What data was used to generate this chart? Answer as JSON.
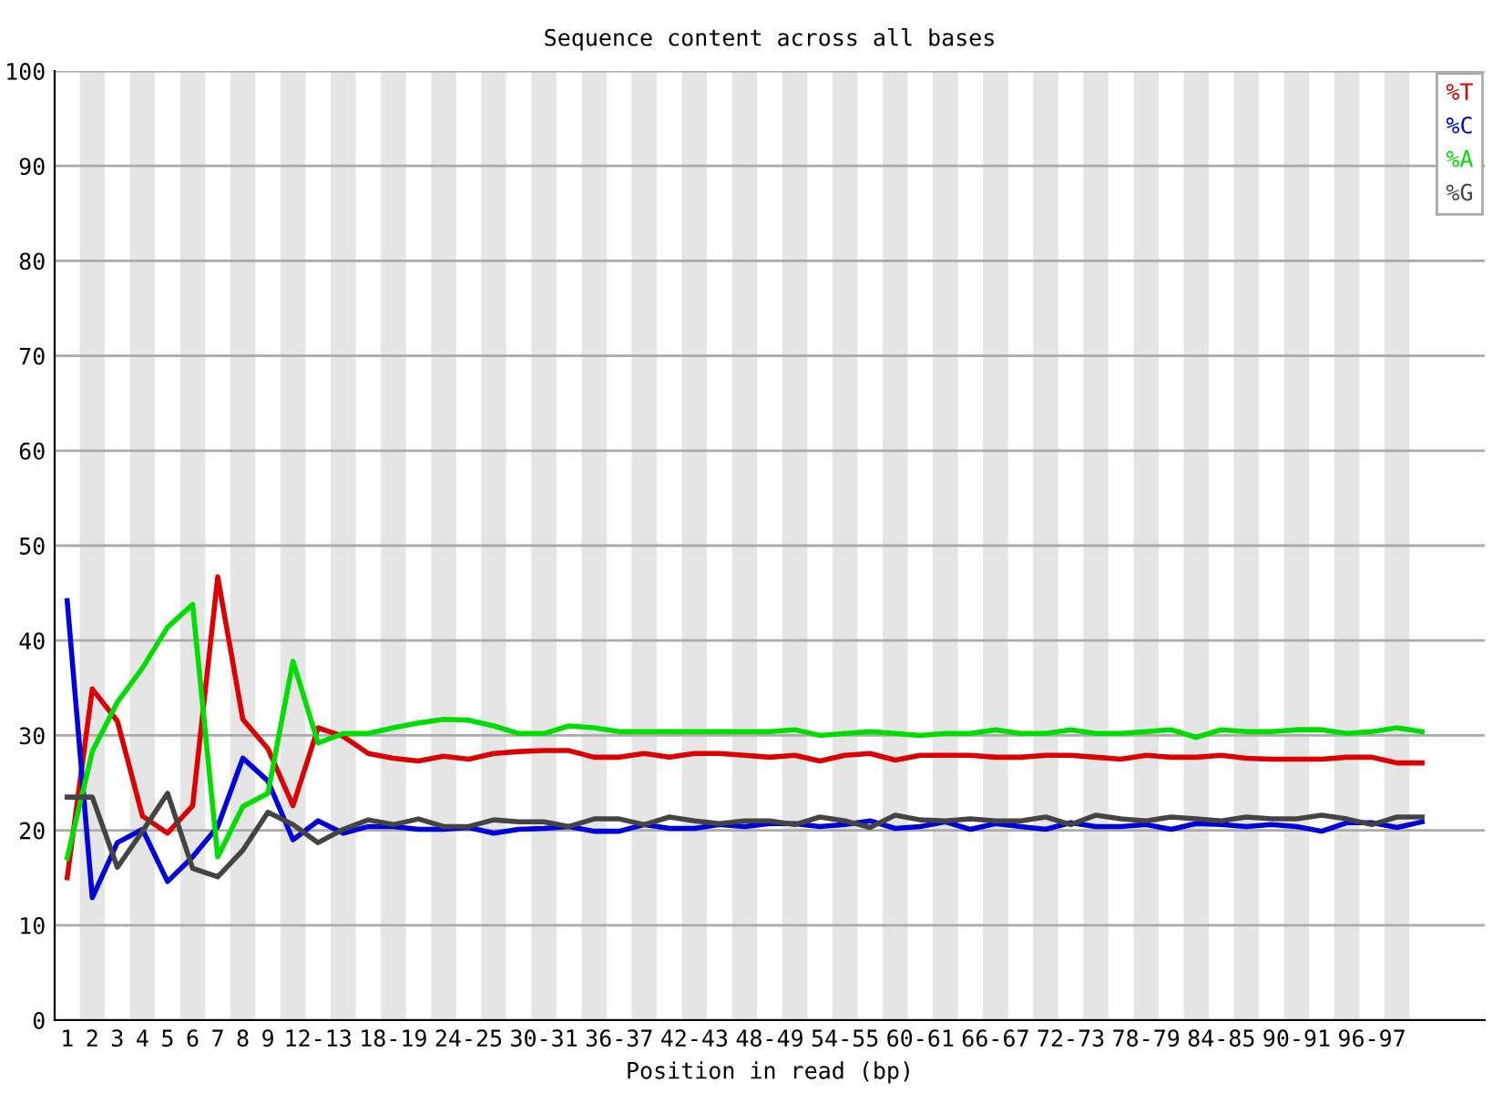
{
  "chart_data": {
    "type": "line",
    "title": "Sequence content across all bases",
    "xlabel": "Position in read (bp)",
    "categories": [
      "1",
      "2",
      "3",
      "4",
      "5",
      "6",
      "7",
      "8",
      "9",
      null,
      "12-13",
      null,
      null,
      "18-19",
      null,
      null,
      "24-25",
      null,
      null,
      "30-31",
      null,
      null,
      "36-37",
      null,
      null,
      "42-43",
      null,
      null,
      "48-49",
      null,
      null,
      "54-55",
      null,
      null,
      "60-61",
      null,
      null,
      "66-67",
      null,
      null,
      "72-73",
      null,
      null,
      "78-79",
      null,
      null,
      "84-85",
      null,
      null,
      "90-91",
      null,
      null,
      "96-97",
      null,
      null
    ],
    "series": [
      {
        "name": "%T",
        "color": "#dd0000",
        "values": [
          15.0,
          34.9,
          31.5,
          21.5,
          19.7,
          22.6,
          46.7,
          31.7,
          28.6,
          22.6,
          30.8,
          29.9,
          28.1,
          27.6,
          27.3,
          27.8,
          27.5,
          28.1,
          28.3,
          28.4,
          28.4,
          27.7,
          27.7,
          28.1,
          27.7,
          28.1,
          28.1,
          27.9,
          27.7,
          27.9,
          27.3,
          27.9,
          28.1,
          27.4,
          27.9,
          27.9,
          27.9,
          27.7,
          27.7,
          27.9,
          27.9,
          27.7,
          27.5,
          27.9,
          27.7,
          27.7,
          27.9,
          27.6,
          27.5,
          27.5,
          27.5,
          27.7,
          27.7,
          27.1,
          27.1
        ]
      },
      {
        "name": "%C",
        "color": "#0000dd",
        "values": [
          44.2,
          12.9,
          18.7,
          20.1,
          14.6,
          17.2,
          20.4,
          27.6,
          25.2,
          19.0,
          21.0,
          19.7,
          20.4,
          20.4,
          20.1,
          20.1,
          20.3,
          19.7,
          20.1,
          20.2,
          20.4,
          19.9,
          19.9,
          20.6,
          20.2,
          20.2,
          20.6,
          20.4,
          20.7,
          20.7,
          20.4,
          20.6,
          21.0,
          20.2,
          20.4,
          20.9,
          20.1,
          20.7,
          20.4,
          20.1,
          20.8,
          20.4,
          20.4,
          20.6,
          20.1,
          20.7,
          20.6,
          20.4,
          20.6,
          20.4,
          19.9,
          20.8,
          20.8,
          20.3,
          20.9
        ]
      },
      {
        "name": "%A",
        "color": "#00dd00",
        "values": [
          17.1,
          28.3,
          33.5,
          37.1,
          41.4,
          43.8,
          17.2,
          22.5,
          23.9,
          37.8,
          29.2,
          30.2,
          30.2,
          30.8,
          31.3,
          31.7,
          31.6,
          31.0,
          30.2,
          30.2,
          31.0,
          30.8,
          30.4,
          30.4,
          30.4,
          30.4,
          30.4,
          30.4,
          30.4,
          30.6,
          30.0,
          30.2,
          30.4,
          30.2,
          30.0,
          30.2,
          30.2,
          30.6,
          30.2,
          30.2,
          30.6,
          30.2,
          30.2,
          30.4,
          30.6,
          29.8,
          30.6,
          30.4,
          30.4,
          30.6,
          30.6,
          30.2,
          30.4,
          30.8,
          30.4
        ]
      },
      {
        "name": "%G",
        "color": "#444444",
        "values": [
          23.5,
          23.5,
          16.1,
          19.9,
          23.9,
          16.0,
          15.1,
          17.9,
          21.9,
          20.6,
          18.7,
          20.1,
          21.1,
          20.6,
          21.2,
          20.4,
          20.4,
          21.1,
          20.9,
          20.9,
          20.4,
          21.2,
          21.2,
          20.6,
          21.4,
          21.0,
          20.7,
          21.0,
          21.0,
          20.6,
          21.4,
          21.0,
          20.3,
          21.6,
          21.1,
          21.0,
          21.2,
          21.0,
          21.0,
          21.4,
          20.6,
          21.6,
          21.2,
          21.0,
          21.4,
          21.2,
          21.0,
          21.4,
          21.2,
          21.2,
          21.6,
          21.2,
          20.6,
          21.4,
          21.4
        ]
      }
    ],
    "ylim": [
      0,
      100
    ],
    "yticks": [
      0,
      10,
      20,
      30,
      40,
      50,
      60,
      70,
      80,
      90,
      100
    ],
    "grid": "y",
    "legend": "top right",
    "marker": "none",
    "line_style": "solid"
  }
}
